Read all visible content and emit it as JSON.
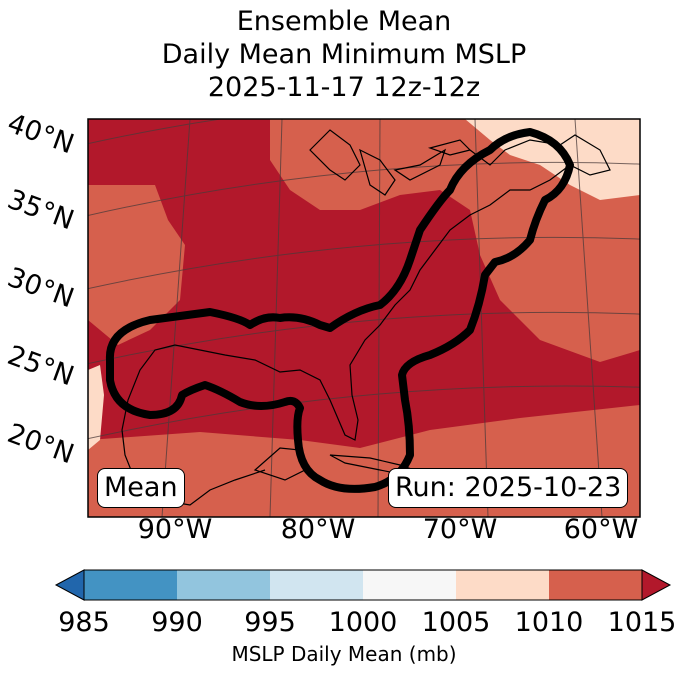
{
  "title": {
    "line1": "Ensemble Mean",
    "line2": "Daily Mean Minimum MSLP",
    "line3": "2025-11-17 12z-12z"
  },
  "map": {
    "lat_labels": [
      "40°N",
      "35°N",
      "30°N",
      "25°N",
      "20°N"
    ],
    "lon_labels": [
      "90°W",
      "80°W",
      "70°W",
      "60°W"
    ],
    "mean_label": "Mean",
    "run_label": "Run: 2025-10-23"
  },
  "colorbar": {
    "ticks": [
      "985",
      "990",
      "995",
      "1000",
      "1005",
      "1010",
      "1015"
    ],
    "label": "MSLP Daily Mean (mb)",
    "colors": {
      "lt985": "#2166ac",
      "c985_990": "#4393c3",
      "c990_995": "#92c5de",
      "c995_1000": "#d1e5f0",
      "c1000_1005": "#f7f7f7",
      "c1005_1010": "#fddbc7",
      "c1010_1015": "#d6604d",
      "gt1015": "#b2182b"
    }
  }
}
